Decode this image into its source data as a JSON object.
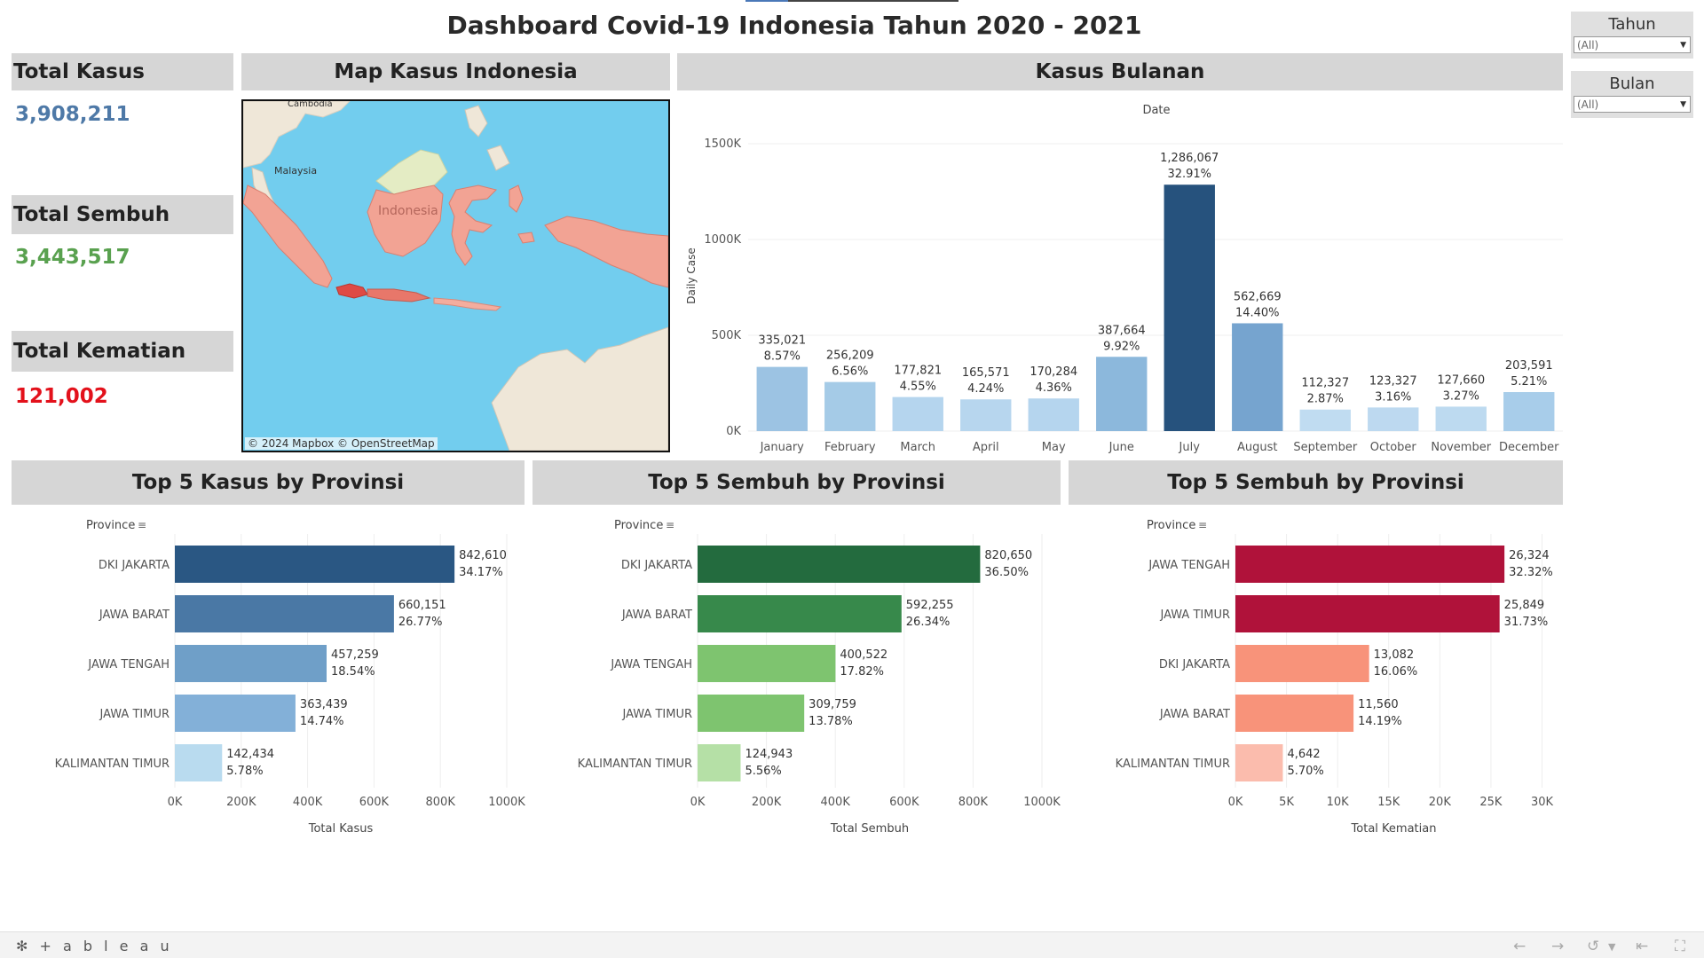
{
  "title": "Dashboard Covid-19 Indonesia Tahun 2020 - 2021",
  "kpis": {
    "total_kasus": {
      "label": "Total Kasus",
      "value": "3,908,211",
      "color": "#4e79a7"
    },
    "total_sembuh": {
      "label": "Total Sembuh",
      "value": "3,443,517",
      "color": "#59a14f"
    },
    "total_kematian": {
      "label": "Total Kematian",
      "value": "121,002",
      "color": "#e3111b"
    }
  },
  "map": {
    "title": "Map Kasus Indonesia",
    "labels": {
      "cambodia": "Cambodia",
      "malaysia": "Malaysia",
      "indonesia": "Indonesia"
    },
    "attribution": "© 2024 Mapbox  © OpenStreetMap"
  },
  "monthly": {
    "title": "Kasus Bulanan",
    "chart_data": {
      "type": "bar",
      "title": "",
      "xlabel": "Date",
      "ylabel": "Daily Case",
      "categories": [
        "January",
        "February",
        "March",
        "April",
        "May",
        "June",
        "July",
        "August",
        "September",
        "October",
        "November",
        "December"
      ],
      "values": [
        335021,
        256209,
        177821,
        165571,
        170284,
        387664,
        1286067,
        562669,
        112327,
        123327,
        127660,
        203591
      ],
      "value_labels": [
        "335,021",
        "256,209",
        "177,821",
        "165,571",
        "170,284",
        "387,664",
        "1,286,067",
        "562,669",
        "112,327",
        "123,327",
        "127,660",
        "203,591"
      ],
      "pct_labels": [
        "8.57%",
        "6.56%",
        "4.55%",
        "4.24%",
        "4.36%",
        "9.92%",
        "32.91%",
        "14.40%",
        "2.87%",
        "3.16%",
        "3.27%",
        "5.21%"
      ],
      "ylim": [
        0,
        1500000
      ],
      "yticks": [
        0,
        500000,
        1000000,
        1500000
      ],
      "ytick_labels": [
        "0K",
        "500K",
        "1000K",
        "1500K"
      ],
      "colors": [
        "#9cc3e3",
        "#a5cbe7",
        "#b5d5ee",
        "#b7d6ee",
        "#b5d5ee",
        "#8cb8dc",
        "#26527d",
        "#76a4cf",
        "#c0dcf1",
        "#bdd9f0",
        "#bddaf0",
        "#a8cdea"
      ]
    }
  },
  "top_kasus": {
    "title": "Top 5 Kasus by Provinsi",
    "chart_data": {
      "type": "bar",
      "orientation": "horizontal",
      "category_header": "Province",
      "xlabel": "Total Kasus",
      "categories": [
        "DKI JAKARTA",
        "JAWA BARAT",
        "JAWA TENGAH",
        "JAWA TIMUR",
        "KALIMANTAN TIMUR"
      ],
      "values": [
        842610,
        660151,
        457259,
        363439,
        142434
      ],
      "value_labels": [
        "842,610",
        "660,151",
        "457,259",
        "363,439",
        "142,434"
      ],
      "pct_labels": [
        "34.17%",
        "26.77%",
        "18.54%",
        "14.74%",
        "5.78%"
      ],
      "xlim": [
        0,
        1000000
      ],
      "xticks": [
        0,
        200000,
        400000,
        600000,
        800000,
        1000000
      ],
      "xtick_labels": [
        "0K",
        "200K",
        "400K",
        "600K",
        "800K",
        "1000K"
      ],
      "colors": [
        "#2a5783",
        "#4a78a5",
        "#6f9fc8",
        "#83b0d8",
        "#b9dbef"
      ]
    }
  },
  "top_sembuh": {
    "title": "Top 5 Sembuh by Provinsi",
    "chart_data": {
      "type": "bar",
      "orientation": "horizontal",
      "category_header": "Province",
      "xlabel": "Total Sembuh",
      "categories": [
        "DKI JAKARTA",
        "JAWA BARAT",
        "JAWA TENGAH",
        "JAWA TIMUR",
        "KALIMANTAN TIMUR"
      ],
      "values": [
        820650,
        592255,
        400522,
        309759,
        124943
      ],
      "value_labels": [
        "820,650",
        "592,255",
        "400,522",
        "309,759",
        "124,943"
      ],
      "pct_labels": [
        "36.50%",
        "26.34%",
        "17.82%",
        "13.78%",
        "5.56%"
      ],
      "xlim": [
        0,
        1000000
      ],
      "xticks": [
        0,
        200000,
        400000,
        600000,
        800000,
        1000000
      ],
      "xtick_labels": [
        "0K",
        "200K",
        "400K",
        "600K",
        "800K",
        "1000K"
      ],
      "colors": [
        "#236b3e",
        "#37894b",
        "#7ec46f",
        "#7ec46f",
        "#b5e0a6"
      ]
    }
  },
  "top_kematian": {
    "title": "Top 5 Sembuh by Provinsi",
    "chart_data": {
      "type": "bar",
      "orientation": "horizontal",
      "category_header": "Province",
      "xlabel": "Total Kematian",
      "categories": [
        "JAWA TENGAH",
        "JAWA TIMUR",
        "DKI JAKARTA",
        "JAWA BARAT",
        "KALIMANTAN TIMUR"
      ],
      "values": [
        26324,
        25849,
        13082,
        11560,
        4642
      ],
      "value_labels": [
        "26,324",
        "25,849",
        "13,082",
        "11,560",
        "4,642"
      ],
      "pct_labels": [
        "32.32%",
        "31.73%",
        "16.06%",
        "14.19%",
        "5.70%"
      ],
      "xlim": [
        0,
        31000
      ],
      "xticks": [
        0,
        5000,
        10000,
        15000,
        20000,
        25000,
        30000
      ],
      "xtick_labels": [
        "0K",
        "5K",
        "10K",
        "15K",
        "20K",
        "25K",
        "30K"
      ],
      "colors": [
        "#b0123a",
        "#b0123a",
        "#f8937a",
        "#f8937a",
        "#fbbcad"
      ]
    }
  },
  "filters": {
    "tahun": {
      "label": "Tahun",
      "value": "(All)"
    },
    "bulan": {
      "label": "Bulan",
      "value": "(All)"
    }
  },
  "footer": {
    "logo": "+ a b l e a u"
  }
}
